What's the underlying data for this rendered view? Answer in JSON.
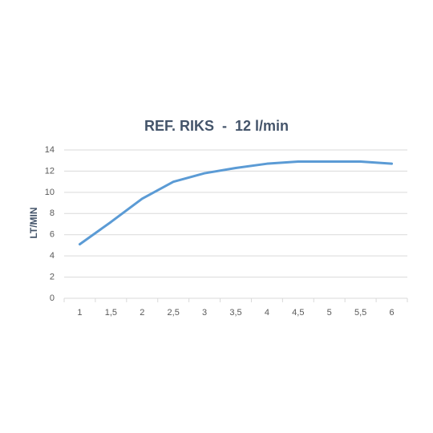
{
  "chart_data": {
    "type": "line",
    "title": "REF. RIKS  -  12 l/min",
    "y_label": "LT/MIN",
    "categories": [
      "1",
      "1,5",
      "2",
      "2,5",
      "3",
      "3,5",
      "4",
      "4,5",
      "5",
      "5,5",
      "6"
    ],
    "series": [
      {
        "name": "LT/MIN",
        "color": "#5b9bd5",
        "values": [
          5.1,
          7.2,
          9.4,
          11.0,
          11.8,
          12.3,
          12.7,
          12.9,
          12.9,
          12.9,
          12.7
        ]
      }
    ],
    "ylim": [
      0,
      14
    ],
    "yticks": [
      0,
      2,
      4,
      6,
      8,
      10,
      12,
      14
    ],
    "grid": true
  }
}
